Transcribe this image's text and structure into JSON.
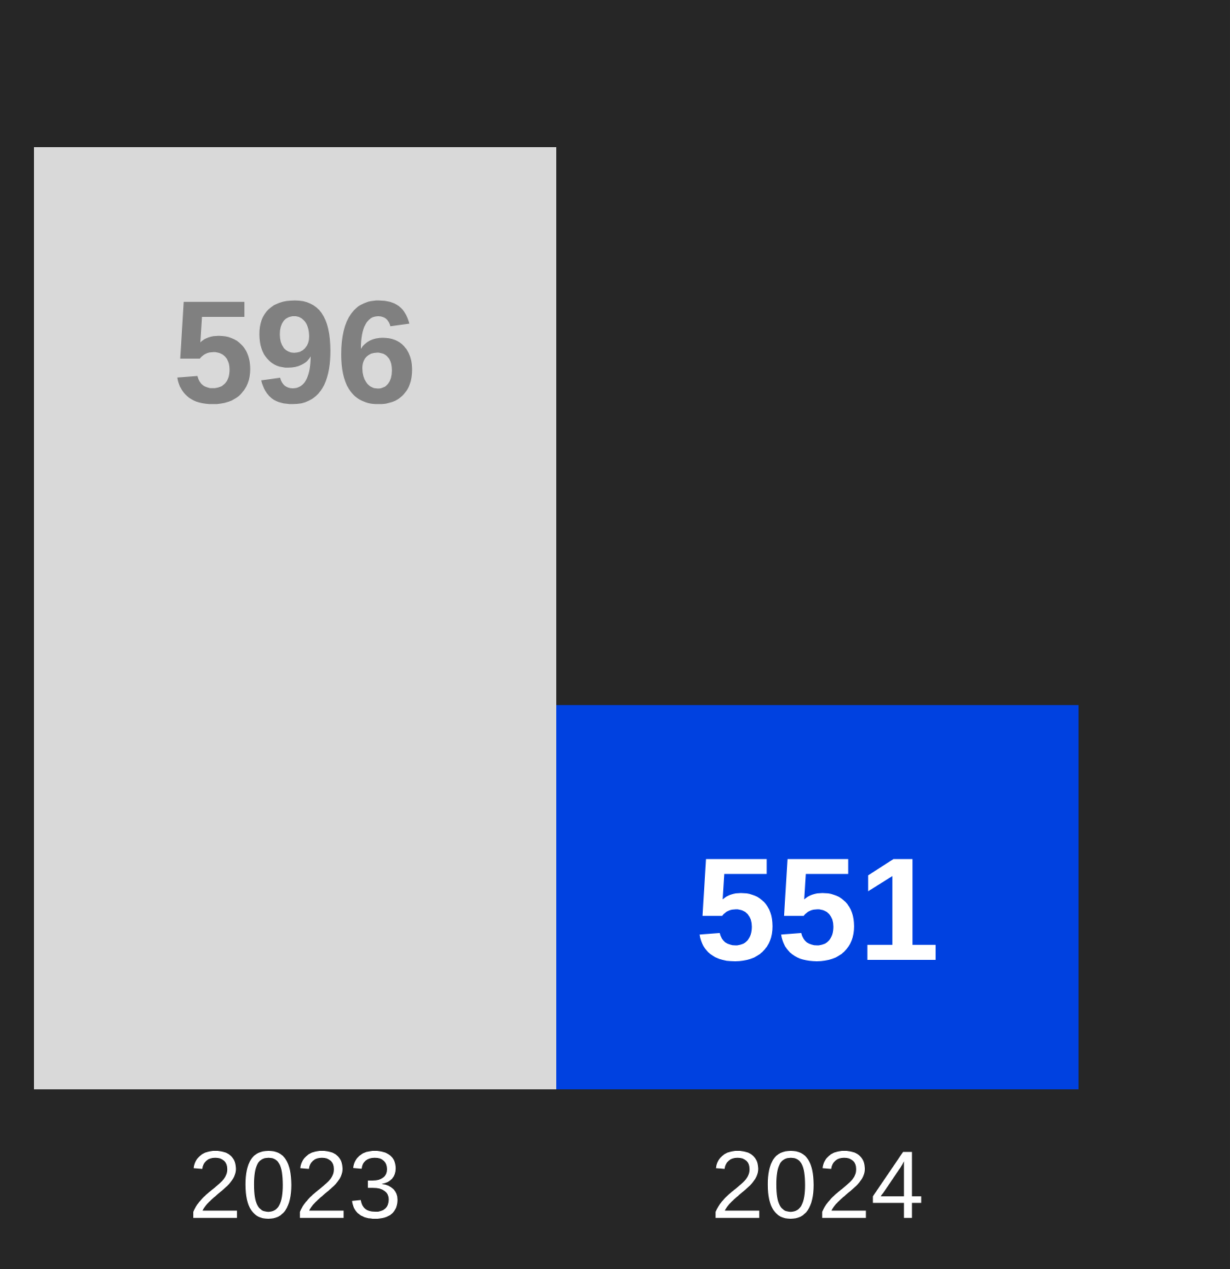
{
  "chart_data": {
    "type": "bar",
    "categories": [
      "2023",
      "2024"
    ],
    "values": [
      596,
      551
    ],
    "colors": [
      "#d9d9d9",
      "#0041e0"
    ],
    "ylim": [
      520,
      596
    ],
    "data_labels": true,
    "tick_labels": "x"
  }
}
